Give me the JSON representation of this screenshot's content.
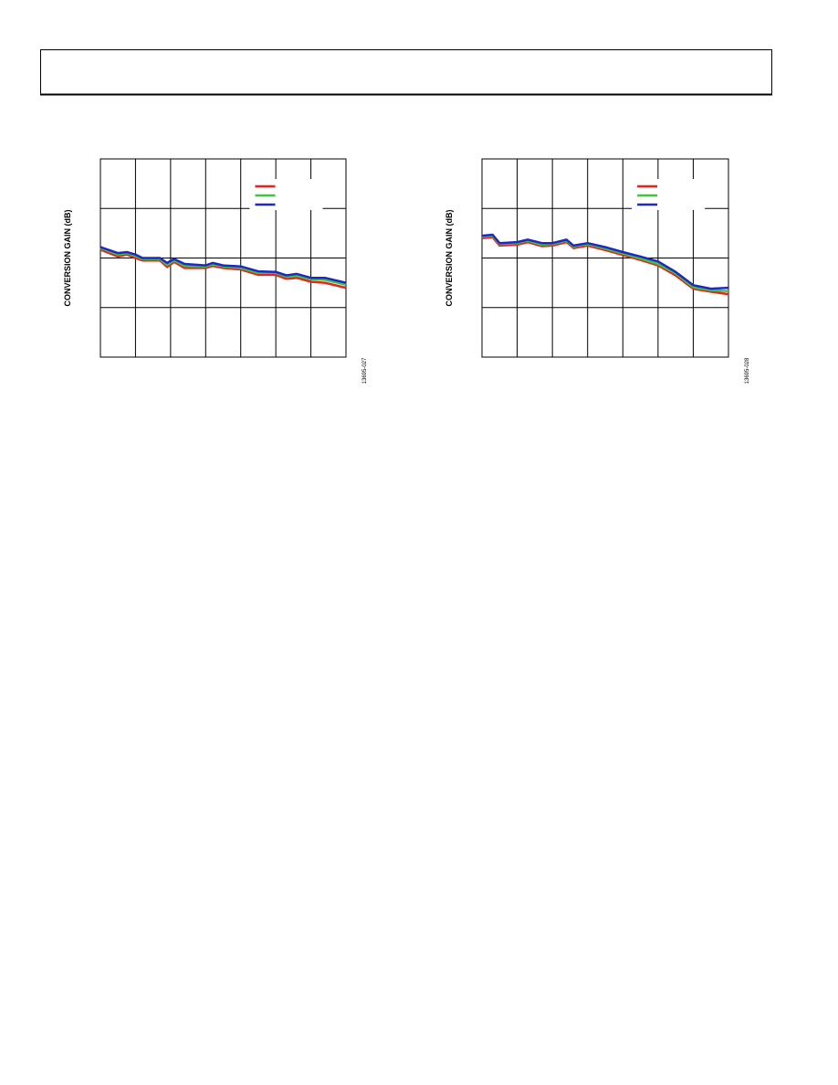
{
  "chart_data": [
    {
      "type": "line",
      "y_label": "CONVERSION GAIN (dB)",
      "figure_id": "13695-027",
      "xlim": [
        0,
        7
      ],
      "ylim": [
        0,
        4
      ],
      "grid_cols": 7,
      "grid_rows": 4,
      "grid": true,
      "x": [
        0,
        0.5,
        0.75,
        1,
        1.2,
        1.7,
        1.9,
        2.1,
        2.4,
        3.0,
        3.2,
        3.5,
        4.0,
        4.5,
        5.0,
        5.3,
        5.6,
        6.0,
        6.4,
        7
      ],
      "series": [
        {
          "color": "#e8231e",
          "values": [
            2.17,
            2.03,
            2.07,
            2.0,
            1.95,
            1.95,
            1.82,
            1.92,
            1.8,
            1.8,
            1.84,
            1.8,
            1.77,
            1.66,
            1.66,
            1.58,
            1.6,
            1.52,
            1.5,
            1.4
          ]
        },
        {
          "color": "#3cc83c",
          "values": [
            2.2,
            2.07,
            2.1,
            2.04,
            1.98,
            1.98,
            1.86,
            1.95,
            1.84,
            1.83,
            1.87,
            1.83,
            1.8,
            1.7,
            1.7,
            1.62,
            1.64,
            1.57,
            1.56,
            1.46
          ]
        },
        {
          "color": "#1e28c8",
          "values": [
            2.22,
            2.1,
            2.12,
            2.07,
            2.0,
            2.0,
            1.9,
            1.98,
            1.88,
            1.85,
            1.9,
            1.85,
            1.83,
            1.73,
            1.72,
            1.65,
            1.68,
            1.6,
            1.6,
            1.5
          ]
        }
      ]
    },
    {
      "type": "line",
      "y_label": "CONVERSION GAIN (dB)",
      "figure_id": "13695-028",
      "xlim": [
        0,
        7
      ],
      "ylim": [
        0,
        4
      ],
      "grid_cols": 7,
      "grid_rows": 4,
      "grid": true,
      "x": [
        0,
        0.3,
        0.5,
        1,
        1.3,
        1.7,
        2,
        2.4,
        2.6,
        3,
        3.5,
        4,
        4.5,
        5,
        5.5,
        6,
        6.5,
        7
      ],
      "series": [
        {
          "color": "#e8231e",
          "values": [
            2.4,
            2.42,
            2.25,
            2.27,
            2.32,
            2.24,
            2.25,
            2.32,
            2.2,
            2.25,
            2.16,
            2.06,
            1.96,
            1.85,
            1.65,
            1.38,
            1.32,
            1.27
          ]
        },
        {
          "color": "#3cc83c",
          "values": [
            2.43,
            2.45,
            2.28,
            2.3,
            2.35,
            2.27,
            2.28,
            2.35,
            2.23,
            2.28,
            2.19,
            2.09,
            1.99,
            1.88,
            1.69,
            1.41,
            1.35,
            1.33
          ]
        },
        {
          "color": "#1e28c8",
          "values": [
            2.45,
            2.47,
            2.3,
            2.32,
            2.37,
            2.3,
            2.3,
            2.37,
            2.25,
            2.3,
            2.22,
            2.12,
            2.03,
            1.93,
            1.72,
            1.45,
            1.38,
            1.4
          ]
        }
      ]
    }
  ]
}
